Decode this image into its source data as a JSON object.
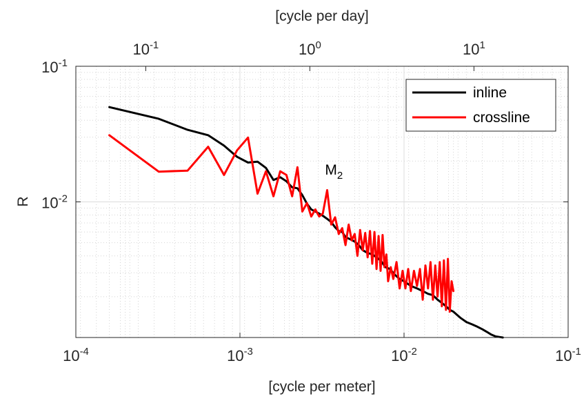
{
  "chart_data": {
    "type": "line",
    "title": "",
    "xlabel": "[cycle per meter]",
    "ylabel": "R",
    "x2label": "[cycle per day]",
    "xscale": "log",
    "yscale": "log",
    "xlim": [
      0.0001,
      0.1
    ],
    "ylim": [
      0.001,
      0.1
    ],
    "x2lim": [
      0.0375,
      37.5
    ],
    "grid": true,
    "legend_position": "top-right",
    "xticks": [
      {
        "value": 0.0001,
        "base": "10",
        "exp": "-4"
      },
      {
        "value": 0.001,
        "base": "10",
        "exp": "-3"
      },
      {
        "value": 0.01,
        "base": "10",
        "exp": "-2"
      },
      {
        "value": 0.1,
        "base": "10",
        "exp": "-1"
      }
    ],
    "yticks": [
      {
        "value": 0.01,
        "base": "10",
        "exp": "-2"
      },
      {
        "value": 0.1,
        "base": "10",
        "exp": "-1"
      }
    ],
    "x2ticks": [
      {
        "value": 0.1,
        "base": "10",
        "exp": "-1"
      },
      {
        "value": 1,
        "base": "10",
        "exp": "0"
      },
      {
        "value": 10,
        "base": "10",
        "exp": "1"
      }
    ],
    "annotations": [
      {
        "text": "M",
        "sub": "2",
        "x": 0.0033,
        "y": 0.0135
      }
    ],
    "series": [
      {
        "name": "inline",
        "color": "#000000",
        "x": [
          0.00016,
          0.00032,
          0.00048,
          0.00064,
          0.0008,
          0.00096,
          0.00112,
          0.00128,
          0.00144,
          0.0016,
          0.00176,
          0.00192,
          0.00208,
          0.00224,
          0.0024,
          0.00256,
          0.00272,
          0.00288,
          0.00304,
          0.0032,
          0.0034,
          0.0036,
          0.0038,
          0.004,
          0.0042,
          0.0044,
          0.0047,
          0.005,
          0.0053,
          0.0056,
          0.006,
          0.0064,
          0.0068,
          0.0072,
          0.0077,
          0.0082,
          0.0088,
          0.0094,
          0.01,
          0.011,
          0.012,
          0.013,
          0.014,
          0.015,
          0.016,
          0.017,
          0.018,
          0.019,
          0.02,
          0.022,
          0.024,
          0.026,
          0.028,
          0.03,
          0.032,
          0.034,
          0.036,
          0.038,
          0.04
        ],
        "values": [
          0.05,
          0.041,
          0.034,
          0.031,
          0.026,
          0.0215,
          0.0195,
          0.0198,
          0.0178,
          0.0145,
          0.0152,
          0.0142,
          0.0128,
          0.0126,
          0.0112,
          0.0097,
          0.0088,
          0.0085,
          0.0082,
          0.0079,
          0.0075,
          0.0071,
          0.0065,
          0.0061,
          0.006,
          0.0055,
          0.0053,
          0.0051,
          0.0048,
          0.0044,
          0.0042,
          0.0041,
          0.0039,
          0.0037,
          0.0033,
          0.0032,
          0.0029,
          0.0027,
          0.0026,
          0.0024,
          0.0023,
          0.0022,
          0.0021,
          0.00205,
          0.0019,
          0.0018,
          0.0017,
          0.0016,
          0.00155,
          0.0014,
          0.0013,
          0.00125,
          0.0012,
          0.00115,
          0.0011,
          0.00105,
          0.00102,
          0.00101,
          0.001
        ]
      },
      {
        "name": "crossline",
        "color": "#ff0000",
        "x": [
          0.00016,
          0.00032,
          0.00048,
          0.00064,
          0.0008,
          0.00096,
          0.00112,
          0.00128,
          0.00144,
          0.0016,
          0.00176,
          0.00192,
          0.00208,
          0.00224,
          0.0024,
          0.00256,
          0.00272,
          0.00288,
          0.00304,
          0.0032,
          0.0034,
          0.0036,
          0.0038,
          0.004,
          0.0042,
          0.0044,
          0.0046,
          0.0048,
          0.005,
          0.0052,
          0.0054,
          0.0056,
          0.0058,
          0.006,
          0.0062,
          0.0064,
          0.0066,
          0.0068,
          0.007,
          0.0072,
          0.0074,
          0.0076,
          0.0078,
          0.008,
          0.0083,
          0.0086,
          0.009,
          0.0094,
          0.0098,
          0.0102,
          0.0106,
          0.011,
          0.0115,
          0.012,
          0.0125,
          0.013,
          0.0135,
          0.014,
          0.0145,
          0.015,
          0.0155,
          0.016,
          0.0165,
          0.017,
          0.0175,
          0.018,
          0.0185,
          0.019,
          0.0195,
          0.02
        ],
        "values": [
          0.031,
          0.0167,
          0.017,
          0.0255,
          0.0158,
          0.024,
          0.0298,
          0.0115,
          0.0168,
          0.011,
          0.0168,
          0.0158,
          0.011,
          0.018,
          0.0085,
          0.0098,
          0.0078,
          0.0088,
          0.0078,
          0.0082,
          0.0122,
          0.0068,
          0.0077,
          0.0058,
          0.0064,
          0.0048,
          0.0068,
          0.0052,
          0.0058,
          0.004,
          0.0062,
          0.0044,
          0.0059,
          0.0039,
          0.0061,
          0.0035,
          0.006,
          0.0032,
          0.0056,
          0.0031,
          0.0057,
          0.0033,
          0.0041,
          0.0026,
          0.0033,
          0.0027,
          0.0036,
          0.0023,
          0.0031,
          0.0023,
          0.0032,
          0.0022,
          0.0031,
          0.0024,
          0.0032,
          0.0019,
          0.0034,
          0.0023,
          0.0036,
          0.0019,
          0.0034,
          0.002,
          0.0036,
          0.0017,
          0.0037,
          0.0016,
          0.0038,
          0.00155,
          0.0026,
          0.0022
        ]
      }
    ]
  }
}
